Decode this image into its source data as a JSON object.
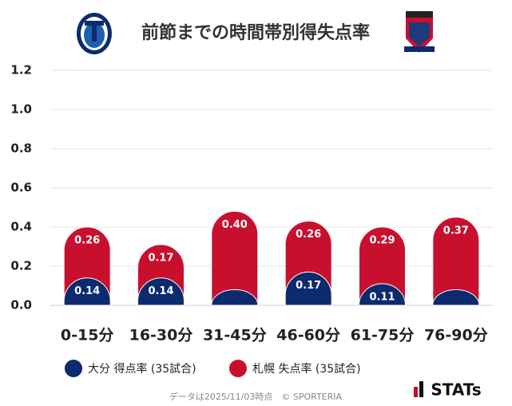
{
  "chart_data": {
    "type": "stacked_bar",
    "title": "前節までの時間帯別得失点率",
    "categories": [
      "0-15分",
      "16-30分",
      "31-45分",
      "46-60分",
      "61-75分",
      "76-90分"
    ],
    "series": [
      {
        "name": "大分 得点率 (35試合)",
        "color": "#0c2a6e",
        "values": [
          0.14,
          0.14,
          0.08,
          0.17,
          0.11,
          0.08
        ],
        "value_labels": [
          "0.14",
          "0.14",
          null,
          "0.17",
          "0.11",
          null
        ]
      },
      {
        "name": "札幌 失点率 (35試合)",
        "color": "#c8102e",
        "values": [
          0.26,
          0.17,
          0.4,
          0.26,
          0.29,
          0.37
        ],
        "value_labels": [
          "0.26",
          "0.17",
          "0.40",
          "0.26",
          "0.29",
          "0.37"
        ]
      }
    ],
    "ylim": [
      0,
      1.2
    ],
    "yticks": [
      {
        "value": 0,
        "label": "0.0"
      },
      0.2,
      0.4,
      0.6,
      0.8,
      {
        "value": 1,
        "label": "1.0"
      },
      1.2
    ],
    "grid": true,
    "footer": "データは2025/11/03時点　© SPORTERIA",
    "brand": "STATs"
  }
}
